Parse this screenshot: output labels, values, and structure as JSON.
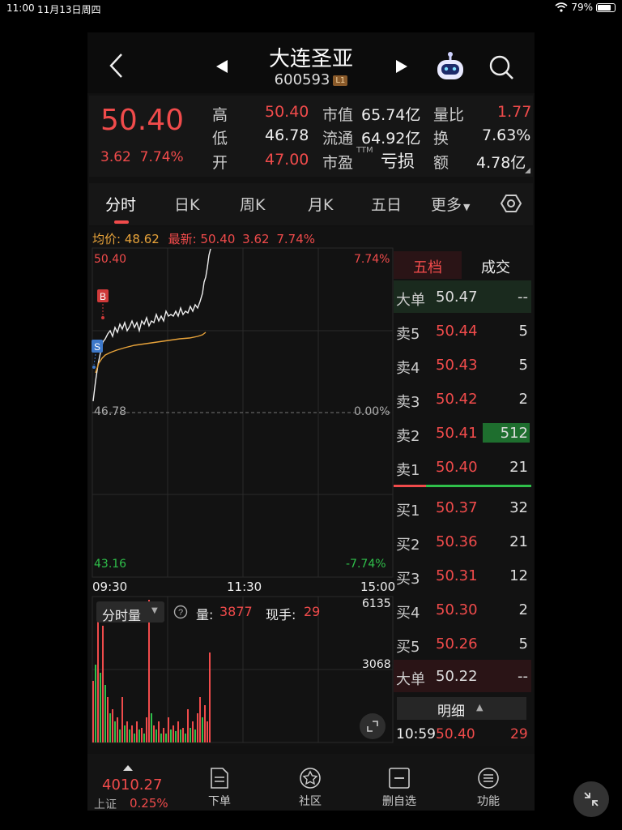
{
  "status": {
    "time": "11:00",
    "date": "11月13日周四",
    "battery": "79%"
  },
  "header": {
    "title": "大连圣亚",
    "code": "600593",
    "level_badge": "L1"
  },
  "quote": {
    "price": "50.40",
    "change": "3.62",
    "change_pct": "7.74%",
    "high_label": "高",
    "high": "50.40",
    "low_label": "低",
    "low": "46.78",
    "open_label": "开",
    "open": "47.00",
    "mktcap_label": "市值",
    "mktcap": "65.74亿",
    "float_label": "流通",
    "float": "64.92亿",
    "pe_label": "市盈",
    "pe_sup": "TTM",
    "pe": "亏损",
    "vr_label": "量比",
    "vr": "1.77",
    "turn_label": "换",
    "turn": "7.63%",
    "amt_label": "额",
    "amt": "4.78亿"
  },
  "tabs": [
    {
      "label": "分时",
      "active": true
    },
    {
      "label": "日K"
    },
    {
      "label": "周K"
    },
    {
      "label": "月K"
    },
    {
      "label": "五日"
    },
    {
      "label": "更多"
    }
  ],
  "legend": {
    "avg_label": "均价:",
    "avg": "48.62",
    "latest_label": "最新:",
    "latest": "50.40",
    "chg": "3.62",
    "pct": "7.74%"
  },
  "chart_axes": {
    "top_price": "50.40",
    "top_pct": "7.74%",
    "mid_price": "46.78",
    "mid_pct": "0.00%",
    "bot_price": "43.16",
    "bot_pct": "-7.74%",
    "t_start": "09:30",
    "t_mid": "11:30",
    "t_end": "15:00",
    "marker_b": "B",
    "marker_s": "S"
  },
  "volume": {
    "selector": "分时量",
    "vol_label": "量:",
    "vol": "3877",
    "hand_label": "现手:",
    "hand": "29",
    "max": "6135",
    "mid": "3068"
  },
  "orderbook": {
    "tab_active": "五档",
    "tab_other": "成交",
    "big_sell": {
      "label": "大单",
      "price": "50.47",
      "vol": "--"
    },
    "asks": [
      {
        "label": "卖5",
        "price": "50.44",
        "vol": "5"
      },
      {
        "label": "卖4",
        "price": "50.43",
        "vol": "5"
      },
      {
        "label": "卖3",
        "price": "50.42",
        "vol": "2"
      },
      {
        "label": "卖2",
        "price": "50.41",
        "vol": "512"
      },
      {
        "label": "卖1",
        "price": "50.40",
        "vol": "21"
      }
    ],
    "bids": [
      {
        "label": "买1",
        "price": "50.37",
        "vol": "32"
      },
      {
        "label": "买2",
        "price": "50.36",
        "vol": "21"
      },
      {
        "label": "买3",
        "price": "50.31",
        "vol": "12"
      },
      {
        "label": "买4",
        "price": "50.30",
        "vol": "2"
      },
      {
        "label": "买5",
        "price": "50.26",
        "vol": "5"
      }
    ],
    "big_buy": {
      "label": "大单",
      "price": "50.22",
      "vol": "--"
    },
    "detail_label": "明细",
    "last_trade": {
      "time": "10:59",
      "price": "50.40",
      "vol": "29"
    }
  },
  "bottom": {
    "index_value": "4010.27",
    "index_name": "上证",
    "index_pct": "0.25%",
    "items": [
      "下单",
      "社区",
      "删自选",
      "功能"
    ]
  }
}
